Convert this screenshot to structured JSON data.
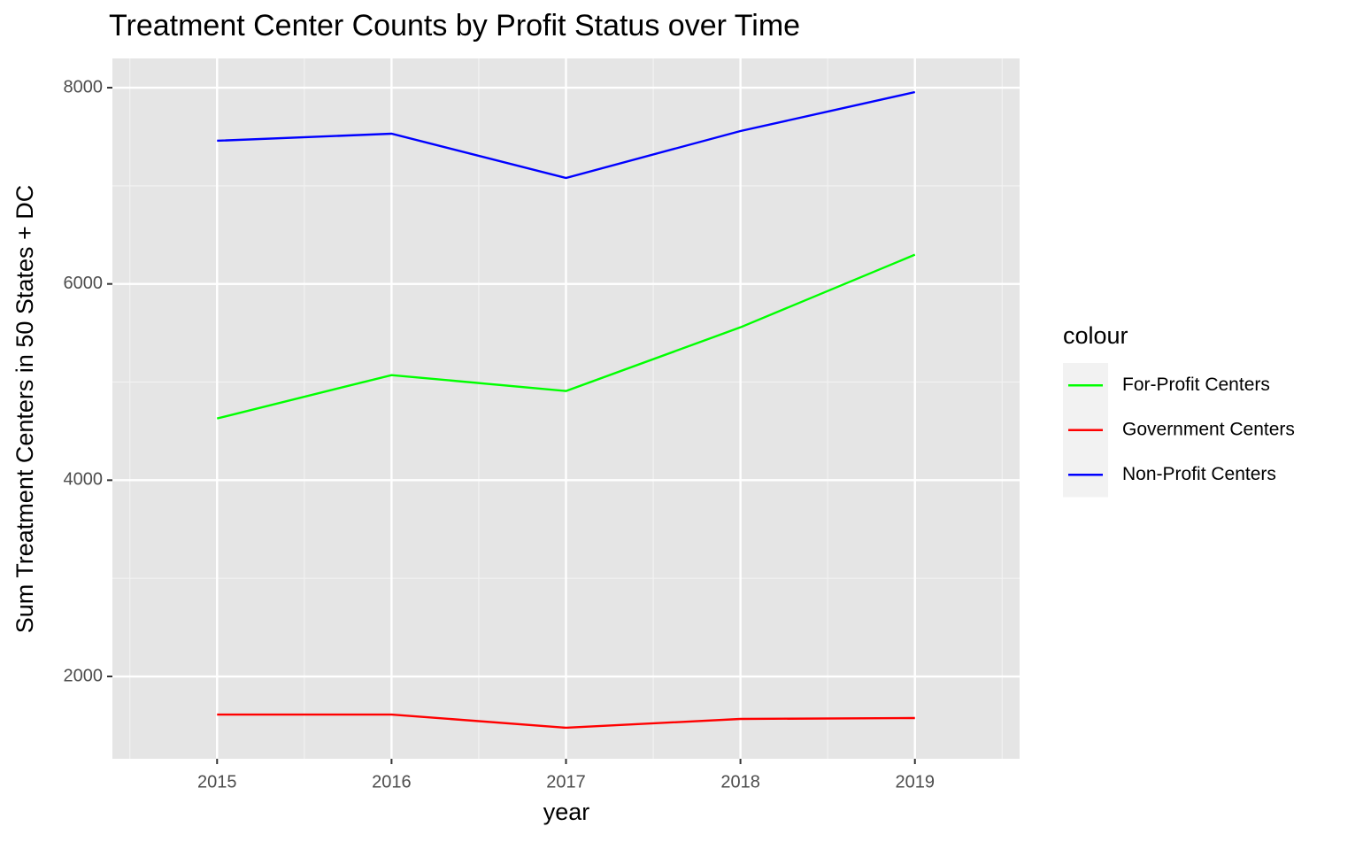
{
  "chart_data": {
    "type": "line",
    "title": "Treatment Center Counts by Profit Status over Time",
    "x_label": "year",
    "y_label": "Sum Treatment Centers in 50 States + DC",
    "legend_title": "colour",
    "legend_position": "right",
    "grid": true,
    "x": [
      2015,
      2016,
      2017,
      2018,
      2019
    ],
    "xlim": [
      2014.4,
      2019.6
    ],
    "xticks": [
      2015,
      2016,
      2017,
      2018,
      2019
    ],
    "ylim": [
      1161,
      8298
    ],
    "yticks": [
      2000,
      4000,
      6000,
      8000
    ],
    "series": [
      {
        "name": "For-Profit Centers",
        "color": "#00ff00",
        "values": [
          4629,
          5071,
          4909,
          5558,
          6298
        ]
      },
      {
        "name": "Government Centers",
        "color": "#ff0000",
        "values": [
          1612,
          1612,
          1477,
          1567,
          1576
        ]
      },
      {
        "name": "Non-Profit Centers",
        "color": "#0000ff",
        "values": [
          7459,
          7531,
          7080,
          7558,
          7955
        ]
      }
    ]
  }
}
